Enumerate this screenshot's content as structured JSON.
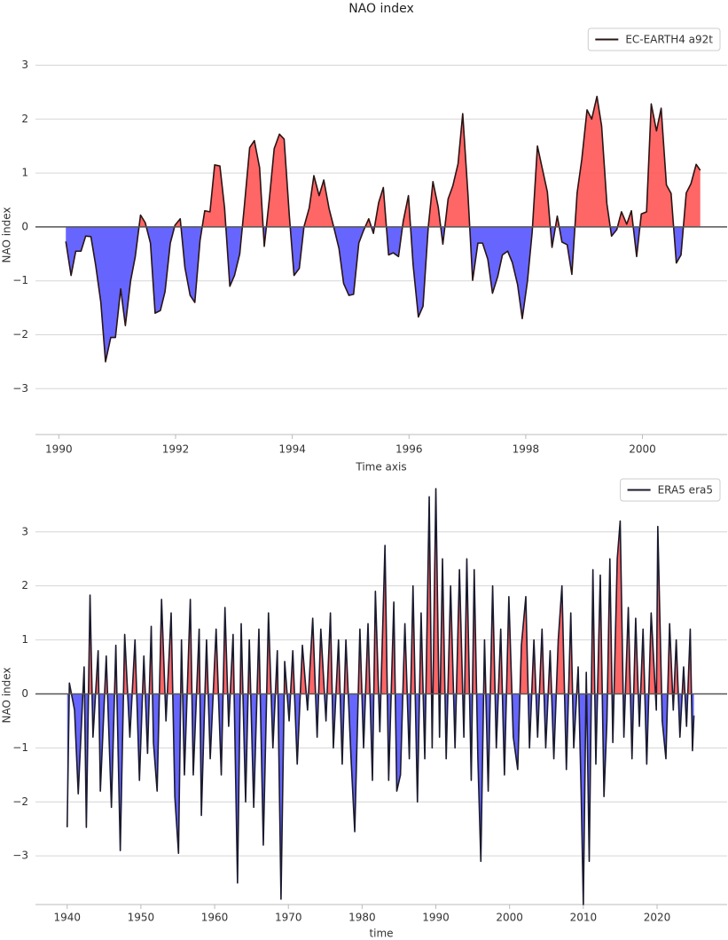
{
  "chart_data": [
    {
      "type": "area",
      "title": "NAO index",
      "xlabel": "Time axis",
      "ylabel": "NAO index",
      "xlim": [
        1989.6,
        2001.45
      ],
      "ylim": [
        -3.85,
        3.55
      ],
      "xticks": [
        1990,
        1992,
        1994,
        1996,
        1998,
        2000
      ],
      "yticks": [
        {
          "value": -3,
          "label": "−3"
        },
        {
          "value": -2,
          "label": "−2"
        },
        {
          "value": -1,
          "label": "−1"
        },
        0,
        1,
        2,
        3
      ],
      "grid": true,
      "legend": "upper right",
      "fill_colors": {
        "positive": "#ff5555",
        "negative": "#5555ff"
      },
      "x": [
        1990.12,
        1990.21,
        1990.29,
        1990.38,
        1990.46,
        1990.55,
        1990.63,
        1990.72,
        1990.8,
        1990.89,
        1990.97,
        1991.06,
        1991.14,
        1991.23,
        1991.31,
        1991.4,
        1991.48,
        1991.57,
        1991.65,
        1991.74,
        1991.82,
        1991.91,
        1991.99,
        1992.08,
        1992.16,
        1992.25,
        1992.33,
        1992.42,
        1992.5,
        1992.59,
        1992.67,
        1992.76,
        1992.84,
        1992.93,
        1993.01,
        1993.1,
        1993.18,
        1993.27,
        1993.35,
        1993.44,
        1993.52,
        1993.61,
        1993.69,
        1993.78,
        1993.86,
        1993.95,
        1994.03,
        1994.12,
        1994.2,
        1994.29,
        1994.37,
        1994.46,
        1994.54,
        1994.63,
        1994.71,
        1994.8,
        1994.88,
        1994.97,
        1995.05,
        1995.14,
        1995.22,
        1995.31,
        1995.39,
        1995.48,
        1995.56,
        1995.65,
        1995.73,
        1995.82,
        1995.9,
        1995.99,
        1996.07,
        1996.16,
        1996.24,
        1996.33,
        1996.41,
        1996.5,
        1996.58,
        1996.67,
        1996.75,
        1996.84,
        1996.92,
        1997.01,
        1997.09,
        1997.18,
        1997.26,
        1997.35,
        1997.43,
        1997.52,
        1997.6,
        1997.69,
        1997.77,
        1997.86,
        1997.94,
        1998.03,
        1998.11,
        1998.2,
        1998.28,
        1998.37,
        1998.45,
        1998.54,
        1998.62,
        1998.71,
        1998.79,
        1998.88,
        1998.96,
        1999.05,
        1999.13,
        1999.22,
        1999.3,
        1999.39,
        1999.47,
        1999.56,
        1999.64,
        1999.73,
        1999.81,
        1999.9,
        1999.98,
        2000.07,
        2000.15,
        2000.24,
        2000.32,
        2000.41,
        2000.49,
        2000.58,
        2000.66,
        2000.75,
        2000.83,
        2000.92,
        2000.99
      ],
      "series": [
        {
          "name": "EC-EARTH4 a92t",
          "color": "#2a1414",
          "values": [
            -0.27,
            -0.9,
            -0.45,
            -0.45,
            -0.17,
            -0.18,
            -0.7,
            -1.4,
            -2.5,
            -2.05,
            -2.05,
            -1.15,
            -1.83,
            -1.0,
            -0.55,
            0.22,
            0.08,
            -0.3,
            -1.6,
            -1.55,
            -1.2,
            -0.3,
            0.03,
            0.15,
            -0.75,
            -1.27,
            -1.4,
            -0.25,
            0.3,
            0.28,
            1.15,
            1.13,
            0.35,
            -1.1,
            -0.9,
            -0.5,
            0.4,
            1.47,
            1.6,
            1.1,
            -0.36,
            0.55,
            1.45,
            1.72,
            1.63,
            0.2,
            -0.9,
            -0.77,
            0.0,
            0.35,
            0.95,
            0.58,
            0.87,
            0.34,
            0.0,
            -0.4,
            -1.05,
            -1.27,
            -1.25,
            -0.3,
            -0.07,
            0.15,
            -0.12,
            0.45,
            0.73,
            -0.52,
            -0.48,
            -0.55,
            0.1,
            0.58,
            -0.7,
            -1.67,
            -1.47,
            0.0,
            0.84,
            0.37,
            -0.32,
            0.52,
            0.76,
            1.17,
            2.1,
            0.6,
            -0.99,
            -0.3,
            -0.3,
            -0.6,
            -1.23,
            -0.92,
            -0.52,
            -0.45,
            -0.66,
            -1.07,
            -1.7,
            -1.0,
            -0.1,
            1.5,
            1.1,
            0.65,
            -0.38,
            0.2,
            -0.28,
            -0.33,
            -0.88,
            0.63,
            1.25,
            2.17,
            2.0,
            2.42,
            1.87,
            0.43,
            -0.17,
            -0.05,
            0.28,
            0.05,
            0.3,
            -0.55,
            0.24,
            0.28,
            2.28,
            1.78,
            2.2,
            0.78,
            0.62,
            -0.67,
            -0.52,
            0.63,
            0.8,
            1.16,
            1.05
          ]
        }
      ]
    },
    {
      "type": "area",
      "xlabel": "time",
      "ylabel": "NAO index",
      "xlim": [
        1935.7,
        2029.5
      ],
      "ylim": [
        -3.9,
        3.85
      ],
      "xticks": [
        1940,
        1950,
        1960,
        1970,
        1980,
        1990,
        2000,
        2010,
        2020
      ],
      "yticks": [
        {
          "value": -3,
          "label": "−3"
        },
        {
          "value": -2,
          "label": "−2"
        },
        {
          "value": -1,
          "label": "−1"
        },
        0,
        1,
        2,
        3
      ],
      "grid": true,
      "legend": "upper right",
      "fill_colors": {
        "positive": "#ff5555",
        "negative": "#5555ff"
      },
      "x": [
        1940.0,
        1940.3,
        1941.0,
        1941.5,
        1942.3,
        1942.6,
        1943.1,
        1943.5,
        1944.2,
        1944.5,
        1945.3,
        1946.0,
        1946.6,
        1947.2,
        1947.8,
        1948.5,
        1949.2,
        1949.8,
        1950.4,
        1950.9,
        1951.4,
        1951.7,
        1952.2,
        1952.8,
        1953.4,
        1954.1,
        1954.6,
        1955.1,
        1955.5,
        1955.9,
        1956.7,
        1957.1,
        1957.9,
        1958.2,
        1958.9,
        1959.4,
        1960.2,
        1960.9,
        1961.4,
        1961.9,
        1962.5,
        1963.1,
        1963.6,
        1964.2,
        1964.7,
        1965.3,
        1966.0,
        1966.6,
        1967.3,
        1967.9,
        1968.5,
        1969.0,
        1969.5,
        1970.1,
        1970.6,
        1971.2,
        1971.9,
        1972.6,
        1973.3,
        1973.9,
        1974.4,
        1975.1,
        1975.7,
        1976.1,
        1976.8,
        1977.3,
        1977.8,
        1978.5,
        1979.0,
        1979.7,
        1980.2,
        1980.8,
        1981.4,
        1981.8,
        1982.4,
        1983.1,
        1983.6,
        1984.3,
        1984.7,
        1985.2,
        1985.8,
        1986.4,
        1986.9,
        1987.5,
        1988.0,
        1988.5,
        1989.1,
        1989.5,
        1990.0,
        1990.5,
        1990.9,
        1991.4,
        1992.0,
        1992.6,
        1993.2,
        1993.8,
        1994.2,
        1994.8,
        1995.2,
        1995.7,
        1996.1,
        1996.6,
        1997.1,
        1997.7,
        1998.2,
        1998.8,
        1999.3,
        1999.9,
        2000.5,
        2001.1,
        2001.6,
        2002.2,
        2002.7,
        2003.3,
        2003.8,
        2004.4,
        2004.9,
        2005.5,
        2006.0,
        2006.6,
        2007.1,
        2007.7,
        2008.3,
        2008.7,
        2009.3,
        2009.7,
        2010.0,
        2010.4,
        2010.8,
        2011.3,
        2011.7,
        2012.3,
        2012.8,
        2013.2,
        2013.6,
        2014.0,
        2014.6,
        2015.0,
        2015.5,
        2016.1,
        2016.6,
        2017.1,
        2017.6,
        2018.1,
        2018.6,
        2019.2,
        2019.9,
        2020.1,
        2020.7,
        2021.2,
        2021.7,
        2022.2,
        2022.6,
        2023.1,
        2023.6,
        2024.0,
        2024.5,
        2024.8,
        2025.0
      ],
      "series": [
        {
          "name": "ERA5 era5",
          "color": "#1a1a2e",
          "values": [
            -2.47,
            0.2,
            -0.3,
            -1.85,
            0.5,
            -2.47,
            1.83,
            -0.8,
            0.8,
            -1.8,
            0.7,
            -2.1,
            0.9,
            -2.9,
            1.1,
            -0.8,
            1.0,
            -1.6,
            0.7,
            -1.1,
            1.25,
            -0.9,
            -1.8,
            1.75,
            -0.5,
            1.5,
            -1.9,
            -2.95,
            1.0,
            -1.5,
            1.75,
            -1.5,
            1.2,
            -2.25,
            1.0,
            -1.2,
            1.2,
            -1.5,
            1.6,
            -0.6,
            1.1,
            -3.5,
            1.3,
            -2.0,
            1.0,
            -2.1,
            1.2,
            -2.8,
            1.5,
            -1.0,
            0.8,
            -3.8,
            0.6,
            -0.5,
            0.8,
            -1.3,
            0.9,
            -0.3,
            1.4,
            -0.8,
            1.2,
            -0.5,
            1.5,
            -1.0,
            1.0,
            -1.3,
            1.0,
            -1.2,
            -2.55,
            1.2,
            -1.0,
            1.3,
            -1.6,
            1.9,
            -0.7,
            2.75,
            -1.6,
            1.7,
            -1.8,
            -1.5,
            1.3,
            -1.2,
            2.0,
            -2.0,
            1.5,
            -1.2,
            3.65,
            -1.0,
            3.8,
            -0.8,
            2.5,
            -1.2,
            2.0,
            -1.0,
            2.3,
            -0.8,
            2.5,
            -1.6,
            2.3,
            -1.2,
            -3.1,
            1.0,
            -1.8,
            2.0,
            -1.0,
            1.2,
            -1.5,
            1.8,
            -0.8,
            -1.4,
            0.9,
            1.8,
            -1.0,
            1.0,
            -0.8,
            1.2,
            -1.0,
            0.8,
            -1.2,
            1.0,
            2.0,
            -1.4,
            1.5,
            -1.0,
            0.5,
            -1.8,
            -3.9,
            0.4,
            -3.1,
            2.3,
            -1.3,
            2.2,
            -1.9,
            -0.5,
            2.5,
            -0.9,
            2.5,
            3.2,
            -0.8,
            1.6,
            -1.2,
            1.4,
            -0.6,
            1.2,
            -1.3,
            1.5,
            -0.3,
            3.1,
            -0.5,
            -1.2,
            1.3,
            -0.3,
            1.0,
            -0.8,
            0.5,
            -0.6,
            1.2,
            -1.05,
            -0.4
          ]
        }
      ]
    }
  ]
}
